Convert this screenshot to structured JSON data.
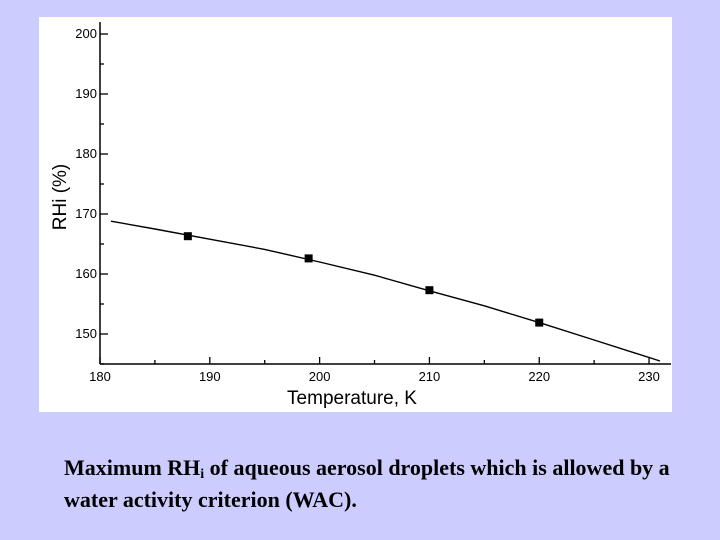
{
  "chart_data": {
    "type": "line",
    "title": "",
    "xlabel": "Temperature, K",
    "ylabel": "RHi (%)",
    "xlim": [
      180,
      232
    ],
    "ylim": [
      145,
      202
    ],
    "x_ticks": [
      180,
      190,
      200,
      210,
      220,
      230
    ],
    "y_ticks": [
      150,
      160,
      170,
      180,
      190,
      200
    ],
    "series": [
      {
        "name": "curve",
        "style": "line",
        "x": [
          181,
          185,
          190,
          195,
          200,
          205,
          210,
          215,
          220,
          225,
          231
        ],
        "y": [
          168.8,
          167.5,
          165.8,
          164.1,
          162.0,
          159.8,
          157.2,
          154.7,
          151.9,
          149.0,
          145.5
        ]
      },
      {
        "name": "markers",
        "style": "marker",
        "x": [
          188,
          199,
          210,
          220
        ],
        "y": [
          166.3,
          162.6,
          157.3,
          151.9
        ]
      }
    ],
    "line_color": "#000000",
    "marker_color": "#000000",
    "grid": false
  },
  "caption": {
    "prefix": "Maximum RH",
    "subscript": "i",
    "suffix": " of aqueous aerosol droplets which is allowed by a water activity criterion (WAC)."
  },
  "colors": {
    "background": "#ccccff",
    "panel": "#ffffff"
  }
}
